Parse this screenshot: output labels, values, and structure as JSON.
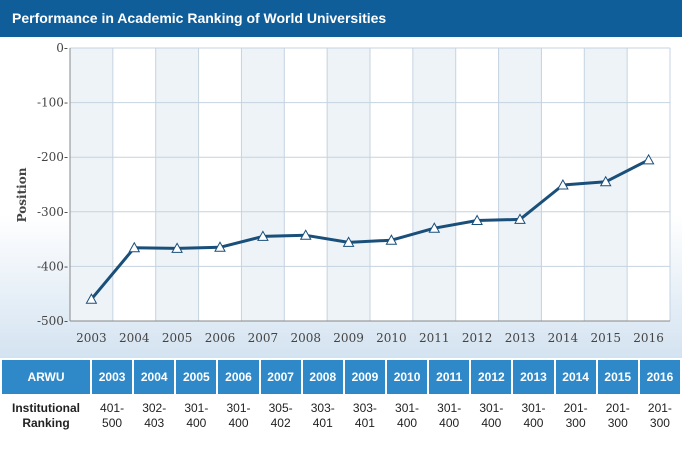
{
  "header": {
    "title": "Performance in Academic Ranking of World Universities"
  },
  "chart_data": {
    "type": "line",
    "title": "",
    "xlabel": "",
    "ylabel": "Position",
    "categories": [
      "2003",
      "2004",
      "2005",
      "2006",
      "2007",
      "2008",
      "2009",
      "2010",
      "2011",
      "2012",
      "2013",
      "2014",
      "2015",
      "2016"
    ],
    "series": [
      {
        "values": [
          -460,
          -366,
          -367,
          -365,
          -345,
          -343,
          -356,
          -352,
          -330,
          -316,
          -314,
          -251,
          -245,
          -205
        ]
      }
    ],
    "ylim": [
      -500,
      0
    ],
    "yticks": [
      0,
      -100,
      -200,
      -300,
      -400,
      -500
    ],
    "ytick_labels": [
      "0-",
      "-100-",
      "-200-",
      "-300-",
      "-400-",
      "-500-"
    ],
    "grid": true,
    "colors": {
      "line": "#1a4f7a",
      "marker_fill": "#ffffff",
      "grid": "#c5d3e0",
      "band": "#eef3f7"
    }
  },
  "table": {
    "header_label": "ARWU",
    "years": [
      "2003",
      "2004",
      "2005",
      "2006",
      "2007",
      "2008",
      "2009",
      "2010",
      "2011",
      "2012",
      "2013",
      "2014",
      "2015",
      "2016"
    ],
    "row_label_line1": "Institutional",
    "row_label_line2": "Ranking",
    "ranks": [
      [
        "401-",
        "500"
      ],
      [
        "302-",
        "403"
      ],
      [
        "301-",
        "400"
      ],
      [
        "301-",
        "400"
      ],
      [
        "305-",
        "402"
      ],
      [
        "303-",
        "401"
      ],
      [
        "303-",
        "401"
      ],
      [
        "301-",
        "400"
      ],
      [
        "301-",
        "400"
      ],
      [
        "301-",
        "400"
      ],
      [
        "301-",
        "400"
      ],
      [
        "201-",
        "300"
      ],
      [
        "201-",
        "300"
      ],
      [
        "201-",
        "300"
      ]
    ]
  }
}
